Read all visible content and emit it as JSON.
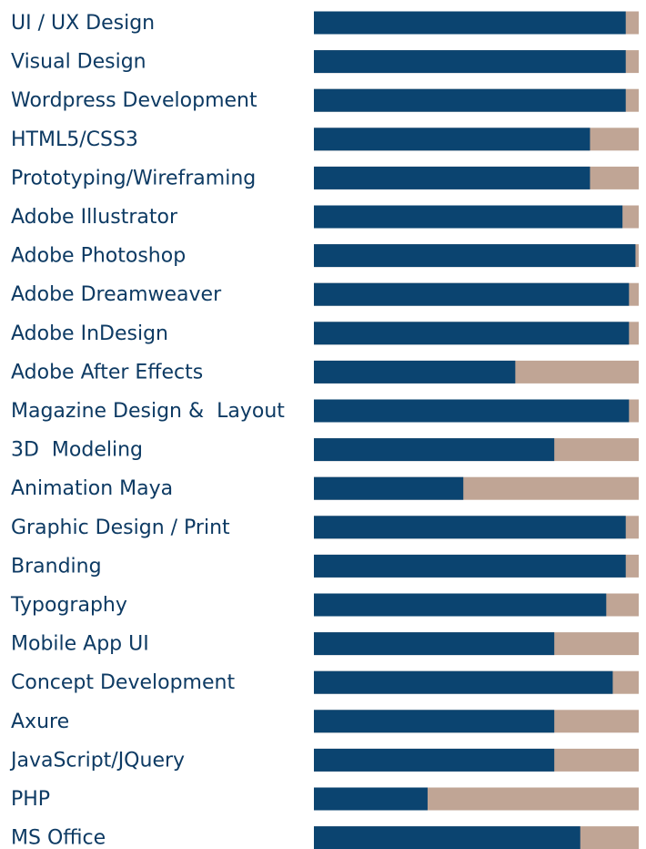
{
  "chart_data": {
    "type": "bar",
    "orientation": "horizontal",
    "categories": [
      "UI / UX Design",
      "Visual Design",
      "Wordpress Development",
      "HTML5/CSS3",
      "Prototyping/Wireframing",
      "Adobe Illustrator",
      "Adobe Photoshop",
      "Adobe Dreamweaver",
      "Adobe InDesign",
      "Adobe After Effects",
      "Magazine Design &  Layout",
      "3D  Modeling",
      "Animation Maya",
      "Graphic Design / Print",
      "Branding",
      "Typography",
      "Mobile App UI",
      "Concept Development",
      "Axure",
      "JavaScript/JQuery",
      "PHP",
      "MS Office"
    ],
    "values": [
      96,
      96,
      96,
      85,
      85,
      95,
      99,
      97,
      97,
      62,
      97,
      74,
      46,
      96,
      96,
      90,
      74,
      92,
      74,
      74,
      35,
      82
    ],
    "color": "#0b4470",
    "track_color": "#c0a595",
    "xlim": [
      0,
      100
    ]
  }
}
